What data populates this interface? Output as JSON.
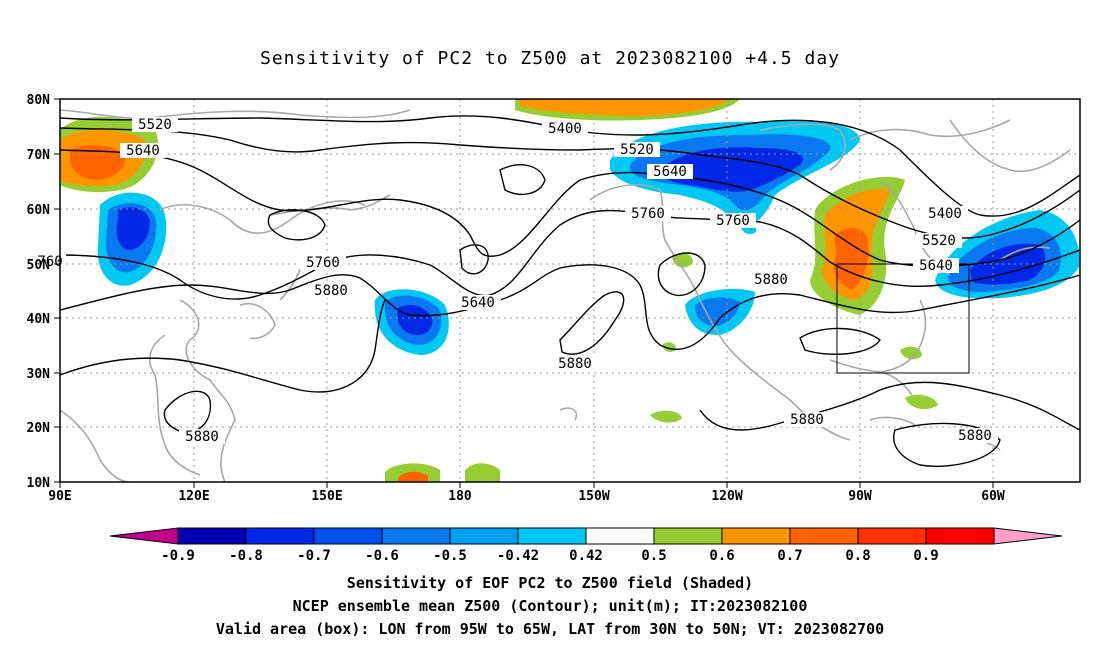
{
  "title": "Sensitivity of PC2 to Z500 at 2023082100 +4.5 day",
  "lat_labels": [
    "80N",
    "70N",
    "60N",
    "50N",
    "40N",
    "30N",
    "20N",
    "10N"
  ],
  "lon_labels": [
    "90E",
    "120E",
    "150E",
    "180",
    "150W",
    "120W",
    "90W",
    "60W"
  ],
  "contour_labels": [
    "5520",
    "5640",
    "5400",
    "5520",
    "5640",
    "5760",
    "5760",
    "5400",
    "5520",
    "5640",
    "5760",
    "5880",
    "5640",
    "5880",
    "5880",
    "5880",
    "5880",
    "5880",
    "760"
  ],
  "colorbar": {
    "labels": [
      "-0.9",
      "-0.8",
      "-0.7",
      "-0.6",
      "-0.5",
      "-0.42",
      "0.42",
      "0.5",
      "0.6",
      "0.7",
      "0.8",
      "0.9"
    ],
    "colors": [
      "#c0008c",
      "#0000b4",
      "#0028e6",
      "#0050f0",
      "#0a78f0",
      "#00a0f0",
      "#00c8f5",
      "#ffffff",
      "#96cd32",
      "#ff9600",
      "#ff6400",
      "#ff3200",
      "#ff0000",
      "#ffa0c8"
    ]
  },
  "shading_colors": {
    "dark_blue": "#0028e6",
    "mid_blue": "#0050f0",
    "light_blue": "#0a78f0",
    "cyan": "#00c8f5",
    "green": "#96cd32",
    "orange": "#ff9600",
    "dark_orange": "#ff6400",
    "red_orange": "#ff3200"
  },
  "captions": {
    "line1": "Sensitivity of EOF PC2 to Z500 field (Shaded)",
    "line2": "NCEP ensemble mean Z500 (Contour); unit(m); IT:2023082100",
    "line3": "Valid area (box): LON from 95W to 65W, LAT from 30N to 50N; VT: 2023082700"
  }
}
